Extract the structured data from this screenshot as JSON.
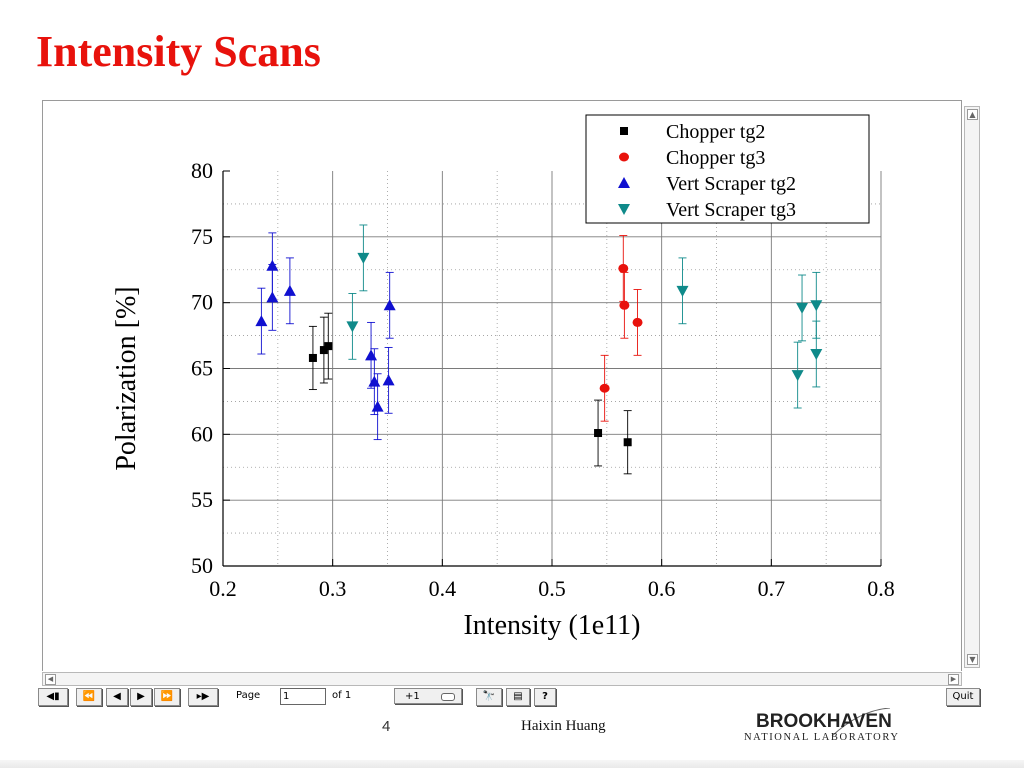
{
  "slide": {
    "title": "Intensity Scans",
    "page_number": "4",
    "author": "Haixin Huang",
    "logo": {
      "name": "BROOKHAVEN",
      "subtitle": "NATIONAL LABORATORY"
    }
  },
  "toolbar": {
    "page_label": "Page",
    "page_value": "1",
    "of_label": "of 1",
    "zoom_step": "+1",
    "help_label": "?",
    "quit_label": "Quit"
  },
  "chart_data": {
    "type": "scatter",
    "xlabel": "Intensity (1e11)",
    "ylabel": "Polarization [%]",
    "xlim": [
      0.2,
      0.8
    ],
    "ylim": [
      50,
      80
    ],
    "xticks": [
      "0.2",
      "0.3",
      "0.4",
      "0.5",
      "0.6",
      "0.7",
      "0.8"
    ],
    "yticks": [
      "50",
      "55",
      "60",
      "65",
      "70",
      "75",
      "80"
    ],
    "grid": true,
    "legend_position": "top-right",
    "series": [
      {
        "name": "Chopper tg2",
        "marker": "square",
        "color": "#000000",
        "points": [
          {
            "x": 0.282,
            "y": 65.8,
            "err": 2.4
          },
          {
            "x": 0.292,
            "y": 66.4,
            "err": 2.5
          },
          {
            "x": 0.296,
            "y": 66.7,
            "err": 2.5
          },
          {
            "x": 0.542,
            "y": 60.1,
            "err": 2.5
          },
          {
            "x": 0.569,
            "y": 59.4,
            "err": 2.4
          }
        ]
      },
      {
        "name": "Chopper tg3",
        "marker": "circle",
        "color": "#e8120c",
        "points": [
          {
            "x": 0.548,
            "y": 63.5,
            "err": 2.5
          },
          {
            "x": 0.565,
            "y": 72.6,
            "err": 2.5
          },
          {
            "x": 0.566,
            "y": 69.8,
            "err": 2.5
          },
          {
            "x": 0.578,
            "y": 68.5,
            "err": 2.5
          }
        ]
      },
      {
        "name": "Vert Scraper tg2",
        "marker": "triangle-up",
        "color": "#1010d0",
        "points": [
          {
            "x": 0.235,
            "y": 68.6,
            "err": 2.5
          },
          {
            "x": 0.245,
            "y": 72.8,
            "err": 2.5
          },
          {
            "x": 0.245,
            "y": 70.4,
            "err": 2.5
          },
          {
            "x": 0.261,
            "y": 70.9,
            "err": 2.5
          },
          {
            "x": 0.335,
            "y": 66.0,
            "err": 2.5
          },
          {
            "x": 0.338,
            "y": 64.0,
            "err": 2.5
          },
          {
            "x": 0.341,
            "y": 62.1,
            "err": 2.5
          },
          {
            "x": 0.351,
            "y": 64.1,
            "err": 2.5
          },
          {
            "x": 0.352,
            "y": 69.8,
            "err": 2.5
          }
        ]
      },
      {
        "name": "Vert Scraper tg3",
        "marker": "triangle-down",
        "color": "#0f8a8a",
        "points": [
          {
            "x": 0.318,
            "y": 68.2,
            "err": 2.5
          },
          {
            "x": 0.328,
            "y": 73.4,
            "err": 2.5
          },
          {
            "x": 0.619,
            "y": 70.9,
            "err": 2.5
          },
          {
            "x": 0.724,
            "y": 64.5,
            "err": 2.5
          },
          {
            "x": 0.728,
            "y": 69.6,
            "err": 2.5
          },
          {
            "x": 0.741,
            "y": 69.8,
            "err": 2.5
          },
          {
            "x": 0.741,
            "y": 66.1,
            "err": 2.5
          }
        ]
      }
    ]
  }
}
